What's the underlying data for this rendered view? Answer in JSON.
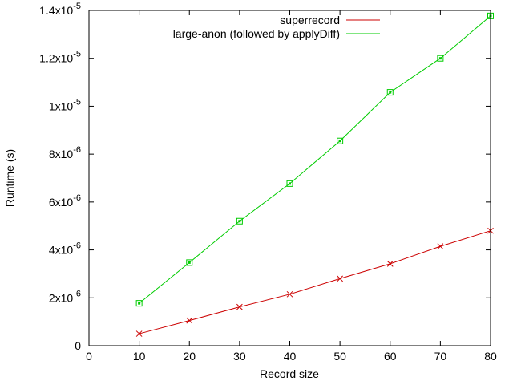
{
  "chart_data": {
    "type": "line",
    "title": "",
    "xlabel": "Record size",
    "ylabel": "Runtime (s)",
    "xlim": [
      0,
      80
    ],
    "ylim": [
      0,
      1.4e-05
    ],
    "grid": false,
    "legend_position": "top-right",
    "x_ticks": [
      {
        "value": 0,
        "label": "0"
      },
      {
        "value": 10,
        "label": "10"
      },
      {
        "value": 20,
        "label": "20"
      },
      {
        "value": 30,
        "label": "30"
      },
      {
        "value": 40,
        "label": "40"
      },
      {
        "value": 50,
        "label": "50"
      },
      {
        "value": 60,
        "label": "60"
      },
      {
        "value": 70,
        "label": "70"
      },
      {
        "value": 80,
        "label": "80"
      }
    ],
    "y_ticks": [
      {
        "value": 0,
        "mantissa": "0",
        "exponent": ""
      },
      {
        "value": 2e-06,
        "mantissa": "2x10",
        "exponent": "-6"
      },
      {
        "value": 4e-06,
        "mantissa": "4x10",
        "exponent": "-6"
      },
      {
        "value": 6e-06,
        "mantissa": "6x10",
        "exponent": "-6"
      },
      {
        "value": 8e-06,
        "mantissa": "8x10",
        "exponent": "-6"
      },
      {
        "value": 1e-05,
        "mantissa": "1x10",
        "exponent": "-5"
      },
      {
        "value": 1.2e-05,
        "mantissa": "1.2x10",
        "exponent": "-5"
      },
      {
        "value": 1.4e-05,
        "mantissa": "1.4x10",
        "exponent": "-5"
      }
    ],
    "series": [
      {
        "name": "superrecord",
        "color": "#cc0000",
        "marker": "x",
        "x": [
          10,
          20,
          30,
          40,
          50,
          60,
          70,
          80
        ],
        "y": [
          5e-07,
          1.05e-06,
          1.62e-06,
          2.15e-06,
          2.8e-06,
          3.42e-06,
          4.15e-06,
          4.8e-06
        ]
      },
      {
        "name": "large-anon (followed by applyDiff)",
        "color": "#00cc00",
        "marker": "boxed-dot",
        "x": [
          10,
          20,
          30,
          40,
          50,
          60,
          70,
          80
        ],
        "y": [
          1.77e-06,
          3.47e-06,
          5.2e-06,
          6.77e-06,
          8.55e-06,
          1.058e-05,
          1.2e-05,
          1.377e-05
        ]
      }
    ]
  }
}
